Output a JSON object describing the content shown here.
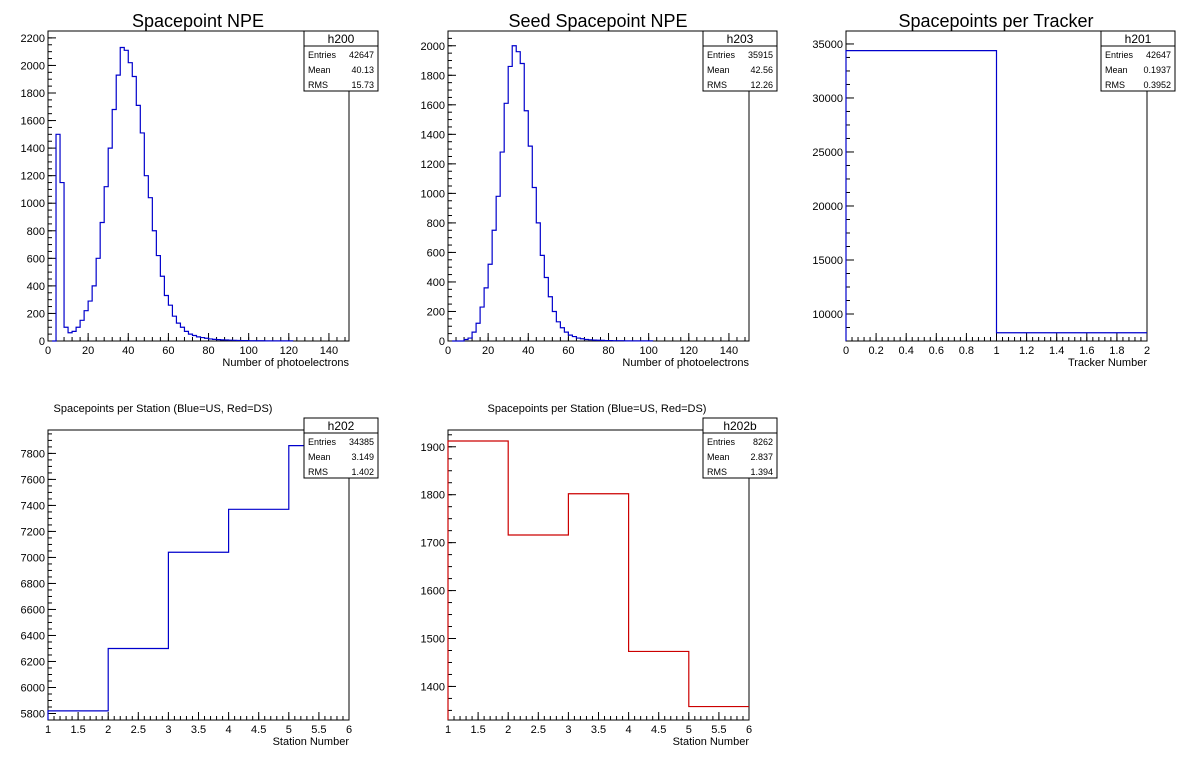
{
  "chart_data": [
    {
      "id": "h200",
      "type": "histogram",
      "title": "Spacepoint NPE",
      "xlabel": "Number of photoelectrons",
      "ylabel": "",
      "xlim": [
        0,
        150
      ],
      "ylim": [
        0,
        2250
      ],
      "xticks": [
        0,
        20,
        40,
        60,
        80,
        100,
        120,
        140
      ],
      "yticks": [
        0,
        200,
        400,
        600,
        800,
        1000,
        1200,
        1400,
        1600,
        1800,
        2000,
        2200
      ],
      "color": "#0000cc",
      "bin_width": 2,
      "x_start": 2,
      "values": [
        0,
        1500,
        1150,
        100,
        60,
        70,
        100,
        150,
        220,
        290,
        400,
        600,
        860,
        1120,
        1400,
        1680,
        1930,
        2130,
        2110,
        2020,
        1920,
        1710,
        1510,
        1200,
        1040,
        800,
        620,
        470,
        330,
        260,
        180,
        130,
        100,
        70,
        50,
        40,
        30,
        25,
        20,
        15,
        12,
        10,
        8,
        7,
        6,
        5,
        4,
        3,
        3,
        2,
        2,
        2,
        2,
        1,
        1,
        1,
        1,
        1,
        1,
        1
      ],
      "stats": {
        "name": "h200",
        "entries": "42647",
        "mean": "40.13",
        "rms": "15.73"
      }
    },
    {
      "id": "h203",
      "type": "histogram",
      "title": "Seed Spacepoint NPE",
      "xlabel": "Number of photoelectrons",
      "ylabel": "",
      "xlim": [
        0,
        150
      ],
      "ylim": [
        0,
        2100
      ],
      "xticks": [
        0,
        20,
        40,
        60,
        80,
        100,
        120,
        140
      ],
      "yticks": [
        0,
        200,
        400,
        600,
        800,
        1000,
        1200,
        1400,
        1600,
        1800,
        2000
      ],
      "color": "#0000cc",
      "bin_width": 2,
      "x_start": 2,
      "values": [
        0,
        0,
        0,
        10,
        20,
        60,
        120,
        230,
        360,
        520,
        750,
        980,
        1280,
        1610,
        1860,
        2000,
        1960,
        1880,
        1560,
        1320,
        1040,
        800,
        580,
        430,
        300,
        200,
        130,
        90,
        60,
        40,
        30,
        20,
        15,
        10,
        8,
        6,
        5,
        4,
        3,
        3,
        2,
        2,
        2,
        1,
        1,
        1,
        1,
        1,
        1,
        1
      ],
      "stats": {
        "name": "h203",
        "entries": "35915",
        "mean": "42.56",
        "rms": "12.26"
      }
    },
    {
      "id": "h201",
      "type": "histogram",
      "title": "Spacepoints per Tracker",
      "xlabel": "Tracker Number",
      "ylabel": "",
      "xlim": [
        0,
        2
      ],
      "ylim": [
        7500,
        36200
      ],
      "xticks": [
        0,
        0.2,
        0.4,
        0.6,
        0.8,
        1,
        1.2,
        1.4,
        1.6,
        1.8,
        2
      ],
      "yticks": [
        10000,
        15000,
        20000,
        25000,
        30000,
        35000
      ],
      "color": "#0000cc",
      "bins": [
        [
          0,
          1,
          34385
        ],
        [
          1,
          2,
          8262
        ]
      ],
      "stats": {
        "name": "h201",
        "entries": "42647",
        "mean": "0.1937",
        "rms": "0.3952"
      }
    },
    {
      "id": "h202",
      "type": "histogram",
      "title": "Spacepoints per Station (Blue=US, Red=DS)",
      "xlabel": "Station Number",
      "ylabel": "",
      "xlim": [
        1,
        6
      ],
      "ylim": [
        5750,
        7980
      ],
      "xticks": [
        1,
        1.5,
        2,
        2.5,
        3,
        3.5,
        4,
        4.5,
        5,
        5.5,
        6
      ],
      "yticks": [
        5800,
        6000,
        6200,
        6400,
        6600,
        6800,
        7000,
        7200,
        7400,
        7600,
        7800
      ],
      "color": "#0000cc",
      "bins": [
        [
          1,
          2,
          5820
        ],
        [
          2,
          3,
          6300
        ],
        [
          3,
          4,
          7040
        ],
        [
          4,
          5,
          7370
        ],
        [
          5,
          6,
          7860
        ]
      ],
      "stats": {
        "name": "h202",
        "entries": "34385",
        "mean": "3.149",
        "rms": "1.402"
      }
    },
    {
      "id": "h202b",
      "type": "histogram",
      "title": "Spacepoints per Station (Blue=US, Red=DS)",
      "xlabel": "Station Number",
      "ylabel": "",
      "xlim": [
        1,
        6
      ],
      "ylim": [
        1330,
        1935
      ],
      "xticks": [
        1,
        1.5,
        2,
        2.5,
        3,
        3.5,
        4,
        4.5,
        5,
        5.5,
        6
      ],
      "yticks": [
        1400,
        1500,
        1600,
        1700,
        1800,
        1900
      ],
      "color": "#cc0000",
      "bins": [
        [
          1,
          2,
          1912
        ],
        [
          2,
          3,
          1716
        ],
        [
          3,
          4,
          1802
        ],
        [
          4,
          5,
          1473
        ],
        [
          5,
          6,
          1358
        ]
      ],
      "stats": {
        "name": "h202b",
        "entries": "8262",
        "mean": "2.837",
        "rms": "1.394"
      }
    }
  ],
  "stat_labels": {
    "entries": "Entries",
    "mean": "Mean",
    "rms": "RMS"
  }
}
